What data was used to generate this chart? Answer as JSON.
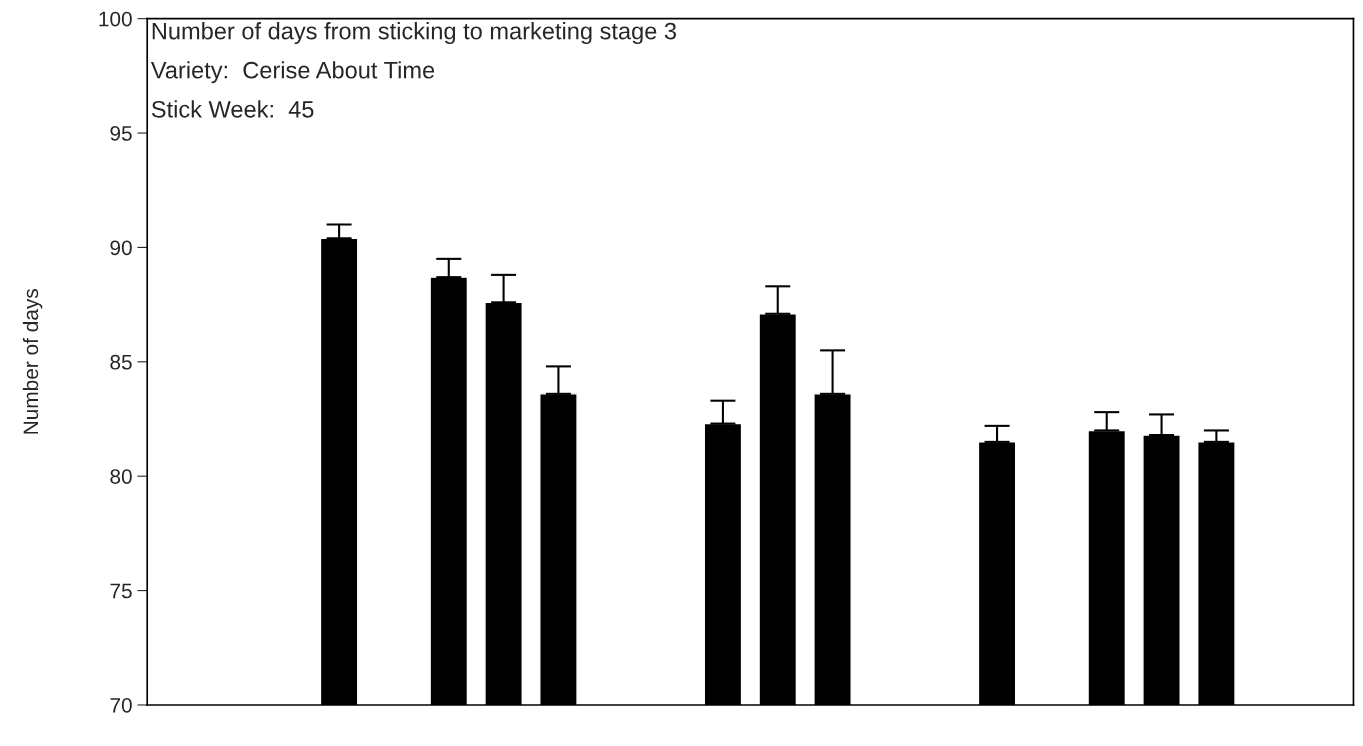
{
  "chart_data": {
    "type": "bar",
    "title": "Number of days from sticking to marketing stage 3",
    "annotations": [
      "Variety:  Cerise About Time",
      "Stick Week:  45"
    ],
    "ylabel": "Number of days",
    "categories": [
      null,
      null,
      null,
      null,
      null,
      null,
      null,
      null,
      null,
      null,
      null,
      null,
      null,
      null,
      null,
      null,
      null,
      null,
      null,
      null,
      null,
      null
    ],
    "values": [
      null,
      null,
      null,
      90.4,
      null,
      88.7,
      87.6,
      83.6,
      null,
      null,
      82.3,
      87.1,
      83.6,
      null,
      null,
      81.5,
      null,
      82.0,
      81.8,
      81.5,
      null,
      null
    ],
    "errors": [
      null,
      null,
      null,
      0.6,
      null,
      0.8,
      1.2,
      1.2,
      null,
      null,
      1.0,
      1.2,
      1.9,
      null,
      null,
      0.7,
      null,
      0.8,
      0.9,
      0.5,
      null,
      null
    ],
    "color": "#000000",
    "ylim": [
      70,
      100
    ],
    "yticks": [
      70,
      75,
      80,
      85,
      90,
      95,
      100
    ],
    "tick_labels": "y",
    "grid": false,
    "legend": false
  }
}
